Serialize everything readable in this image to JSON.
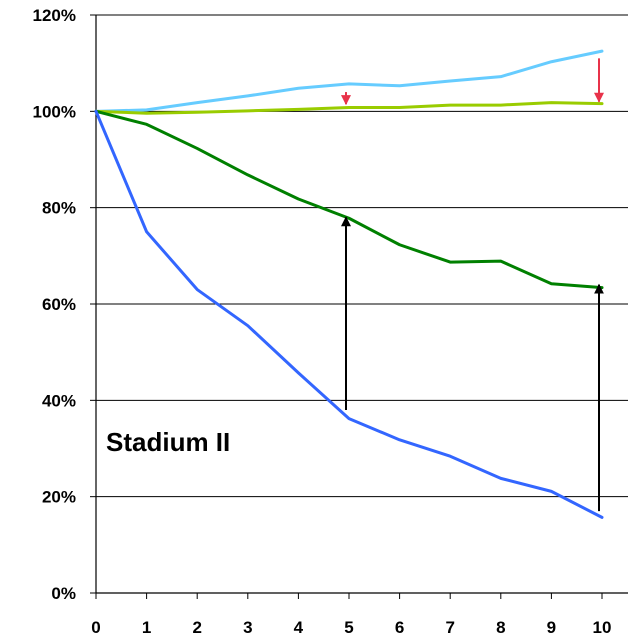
{
  "chart_data": {
    "type": "line",
    "x": [
      0,
      1,
      2,
      3,
      4,
      5,
      6,
      7,
      8,
      9,
      10
    ],
    "xlim": [
      0,
      10
    ],
    "ylim": [
      0,
      120
    ],
    "y_tick_labels": [
      "0%",
      "20%",
      "40%",
      "60%",
      "80%",
      "100%",
      "120%"
    ],
    "x_tick_labels": [
      "0",
      "1",
      "2",
      "3",
      "4",
      "5",
      "6",
      "7",
      "8",
      "9",
      "10"
    ],
    "grid": "horizontal",
    "series": [
      {
        "color": "#66ccff",
        "values": [
          100,
          100.3,
          101.8,
          103.2,
          104.8,
          105.7,
          105.3,
          106.3,
          107.2,
          110.3,
          112.5
        ]
      },
      {
        "color": "#99cc00",
        "values": [
          100,
          99.6,
          99.8,
          100.1,
          100.4,
          100.8,
          100.8,
          101.3,
          101.3,
          101.8,
          101.6
        ]
      },
      {
        "color": "#008000",
        "values": [
          100,
          97.3,
          92.3,
          86.8,
          81.8,
          77.8,
          72.3,
          68.7,
          68.9,
          64.2,
          63.4
        ]
      },
      {
        "color": "#3366ff",
        "values": [
          100,
          75.0,
          63.0,
          55.5,
          45.7,
          36.2,
          31.8,
          28.4,
          23.8,
          21.1,
          15.7
        ]
      }
    ],
    "annotations": {
      "text": "Stadium II",
      "arrows": [
        {
          "color": "#000000",
          "x": 5,
          "from": 38,
          "to": 78
        },
        {
          "color": "#000000",
          "x": 10,
          "from": 17,
          "to": 64
        },
        {
          "color": "#e8334a",
          "x": 10,
          "from": 111,
          "to": 102
        },
        {
          "color": "#e8334a",
          "x": 5,
          "from": 104,
          "to": 101.5
        }
      ]
    }
  }
}
